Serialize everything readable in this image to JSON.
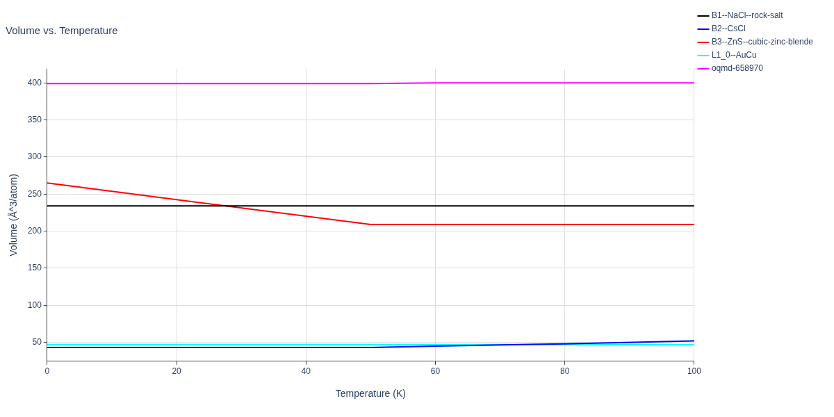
{
  "chart_data": {
    "type": "line",
    "title": "Volume vs. Temperature",
    "xlabel": "Temperature (K)",
    "ylabel": "Volume (Å^3/atom)",
    "x": [
      0,
      50,
      60,
      80,
      100
    ],
    "series": [
      {
        "name": "B1--NaCl--rock-salt",
        "color": "#000000",
        "values": [
          234,
          234,
          234,
          234,
          234
        ]
      },
      {
        "name": "B2--CsCl",
        "color": "#0000ff",
        "values": [
          43,
          43,
          45,
          48,
          52
        ]
      },
      {
        "name": "B3--ZnS--cubic-zinc-blende",
        "color": "#ff0000",
        "values": [
          265,
          209,
          209,
          209,
          209
        ]
      },
      {
        "name": "L1_0--AuCu",
        "color": "#00ffff",
        "values": [
          47,
          47,
          47,
          47,
          47
        ]
      },
      {
        "name": "oqmd-658970",
        "color": "#ff00ff",
        "values": [
          399,
          399,
          400,
          400,
          400
        ]
      }
    ],
    "xlim": [
      0,
      100
    ],
    "xticks": [
      0,
      20,
      40,
      60,
      80,
      100
    ],
    "ylim": [
      24.5,
      419
    ],
    "yticks": [
      50,
      100,
      150,
      200,
      250,
      300,
      350,
      400
    ],
    "grid": true,
    "legend": "top right",
    "marker": "none",
    "line_style": "solid"
  }
}
